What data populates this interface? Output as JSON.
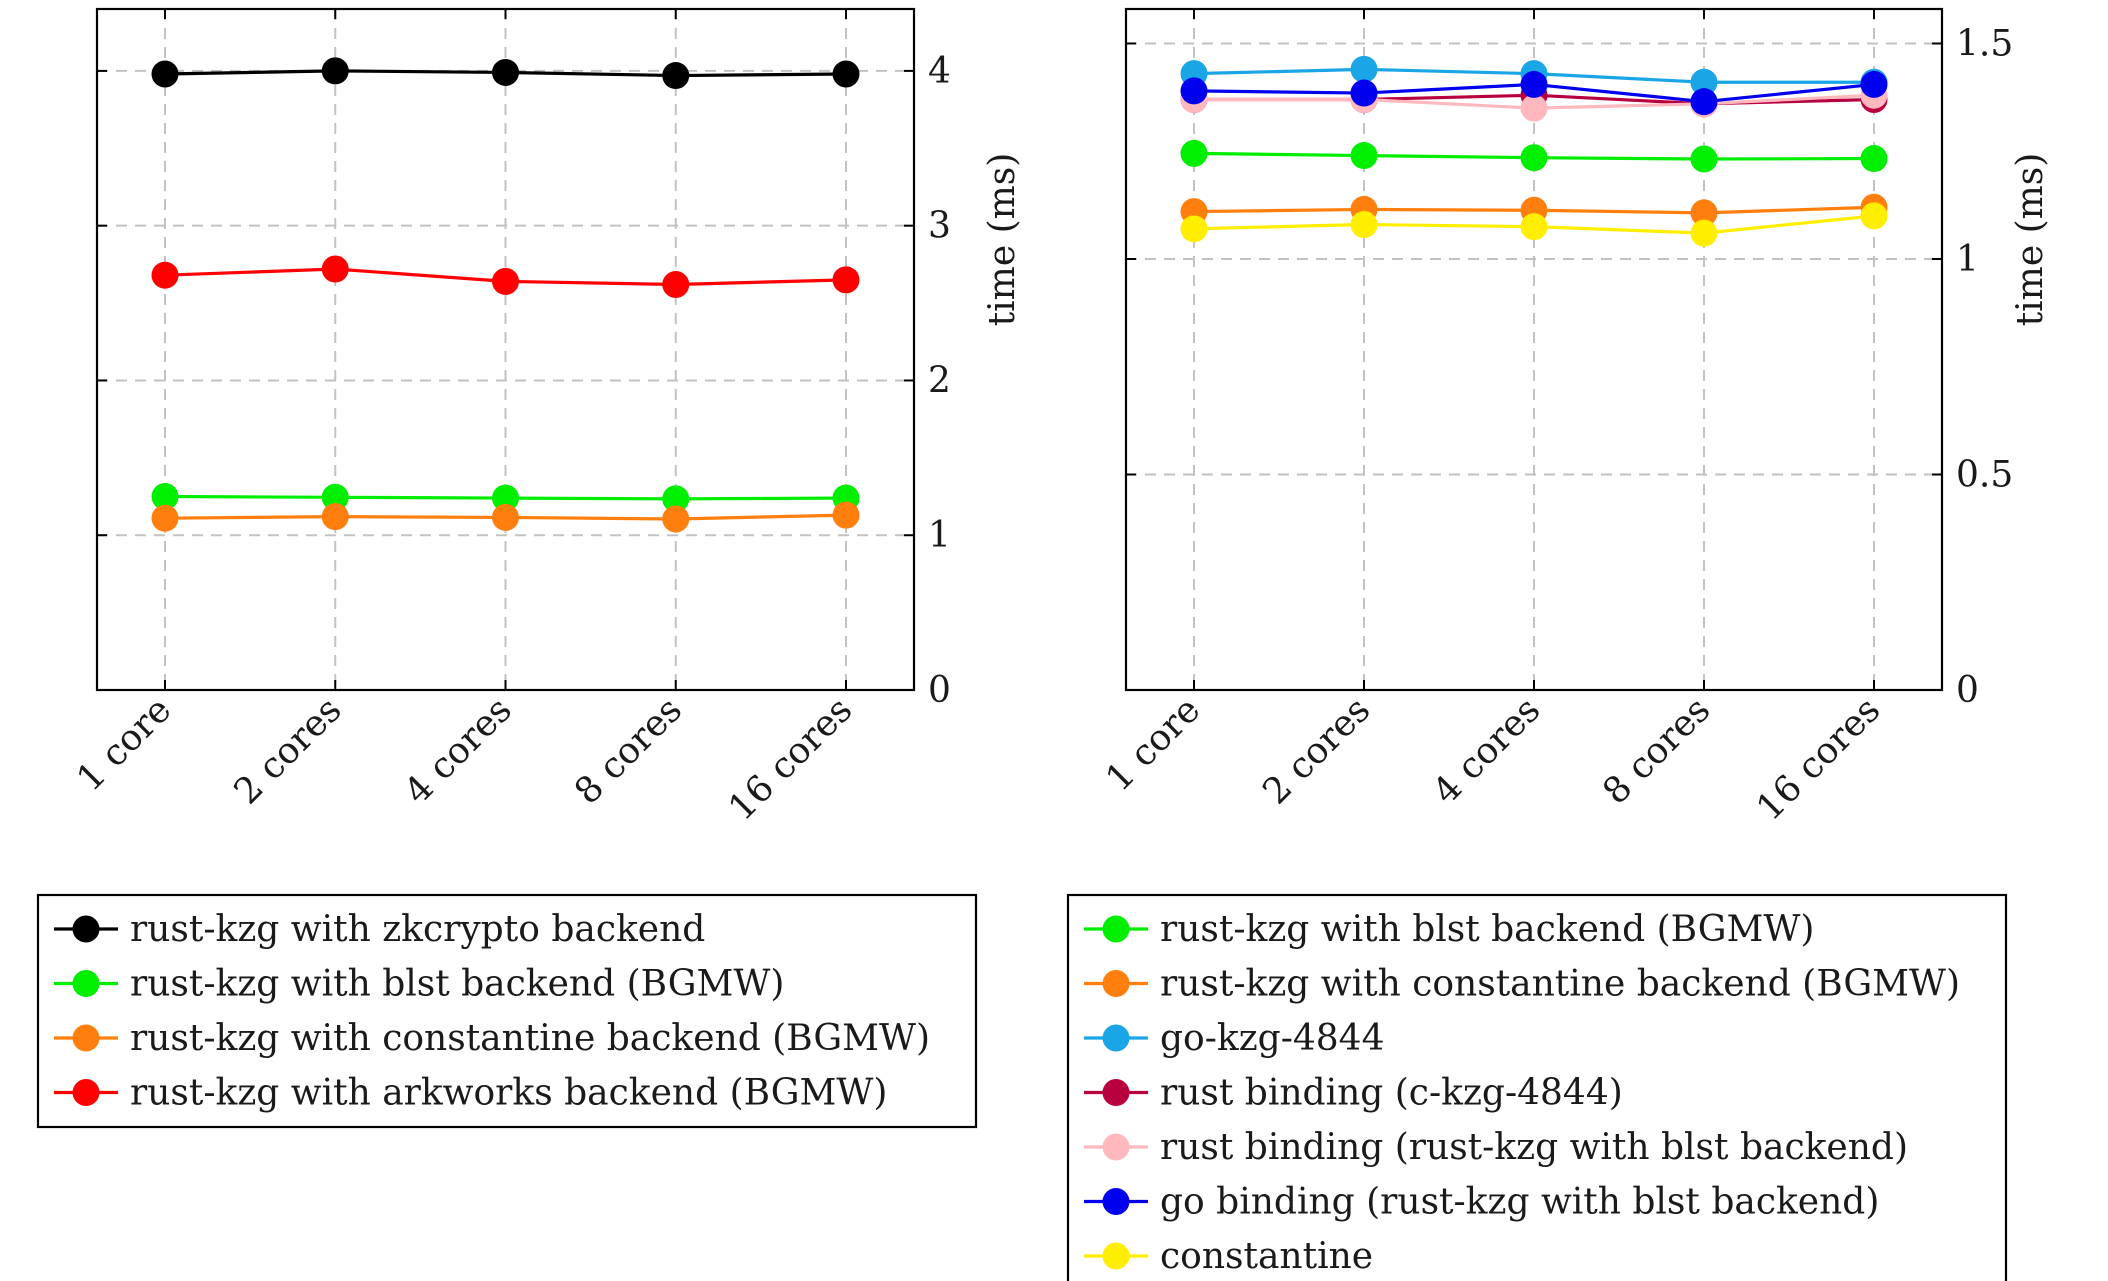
{
  "chart_data": [
    {
      "type": "line",
      "title": "",
      "xlabel": "",
      "ylabel": "time (ms)",
      "categories": [
        "1 core",
        "2 cores",
        "4 cores",
        "8 cores",
        "16 cores"
      ],
      "ylim": [
        0,
        4.4
      ],
      "yticks": [
        0,
        1,
        2,
        3,
        4
      ],
      "ytick_labels": [
        "0",
        "1",
        "2",
        "3",
        "4"
      ],
      "grid": true,
      "legend_position": "below",
      "series": [
        {
          "name": "rust-kzg with zkcrypto backend",
          "color": "#000000",
          "values": [
            3.98,
            4.0,
            3.99,
            3.97,
            3.98
          ]
        },
        {
          "name": "rust-kzg with blst backend (BGMW)",
          "color": "#00ee00",
          "values": [
            1.25,
            1.245,
            1.24,
            1.235,
            1.24
          ]
        },
        {
          "name": "rust-kzg with constantine backend (BGMW)",
          "color": "#ff7f0e",
          "values": [
            1.11,
            1.12,
            1.115,
            1.105,
            1.13
          ]
        },
        {
          "name": "rust-kzg with arkworks backend (BGMW)",
          "color": "#ff0000",
          "values": [
            2.68,
            2.72,
            2.64,
            2.62,
            2.65
          ]
        }
      ]
    },
    {
      "type": "line",
      "title": "",
      "xlabel": "",
      "ylabel": "time (ms)",
      "categories": [
        "1 core",
        "2 cores",
        "4 cores",
        "8 cores",
        "16 cores"
      ],
      "ylim": [
        0,
        1.58
      ],
      "yticks": [
        0,
        0.5,
        1,
        1.5
      ],
      "ytick_labels": [
        "0",
        "0.5",
        "1",
        "1.5"
      ],
      "grid": true,
      "legend_position": "below",
      "series": [
        {
          "name": "rust-kzg with blst backend (BGMW)",
          "color": "#00ee00",
          "values": [
            1.245,
            1.24,
            1.235,
            1.232,
            1.233
          ]
        },
        {
          "name": "rust-kzg with constantine backend (BGMW)",
          "color": "#ff7f0e",
          "values": [
            1.11,
            1.115,
            1.113,
            1.107,
            1.12
          ]
        },
        {
          "name": "go-kzg-4844",
          "color": "#1aa6e6",
          "values": [
            1.43,
            1.44,
            1.43,
            1.41,
            1.41
          ]
        },
        {
          "name": "rust binding (c-kzg-4844)",
          "color": "#b8003f",
          "values": [
            1.37,
            1.37,
            1.38,
            1.36,
            1.37
          ]
        },
        {
          "name": "rust binding (rust-kzg with blst backend)",
          "color": "#ffb8bd",
          "values": [
            1.37,
            1.37,
            1.35,
            1.36,
            1.38
          ]
        },
        {
          "name": "go binding (rust-kzg with blst backend)",
          "color": "#0000ee",
          "values": [
            1.39,
            1.385,
            1.405,
            1.365,
            1.405
          ]
        },
        {
          "name": "constantine",
          "color": "#ffee00",
          "values": [
            1.07,
            1.08,
            1.075,
            1.06,
            1.1
          ]
        }
      ]
    }
  ]
}
